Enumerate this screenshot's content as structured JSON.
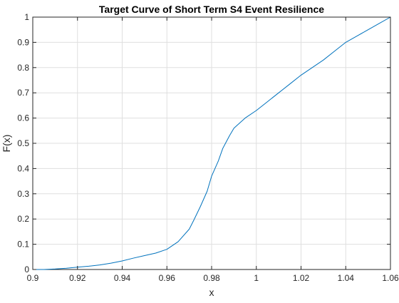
{
  "chart_data": {
    "type": "line",
    "title": "Target Curve of Short Term S4 Event Resilience",
    "xlabel": "x",
    "ylabel": "F(x)",
    "xlim": [
      0.9,
      1.06
    ],
    "ylim": [
      0,
      1
    ],
    "x_ticks": [
      0.9,
      0.92,
      0.94,
      0.96,
      0.98,
      1.0,
      1.02,
      1.04,
      1.06
    ],
    "x_tick_labels": [
      "0.9",
      "0.92",
      "0.94",
      "0.96",
      "0.98",
      "1",
      "1.02",
      "1.04",
      "1.06"
    ],
    "y_ticks": [
      0,
      0.1,
      0.2,
      0.3,
      0.4,
      0.5,
      0.6,
      0.7,
      0.8,
      0.9,
      1.0
    ],
    "y_tick_labels": [
      "0",
      "0.1",
      "0.2",
      "0.3",
      "0.4",
      "0.5",
      "0.6",
      "0.7",
      "0.8",
      "0.9",
      "1"
    ],
    "grid": true,
    "series": [
      {
        "color": "#0072bd",
        "x": [
          0.9,
          0.905,
          0.91,
          0.915,
          0.92,
          0.925,
          0.93,
          0.935,
          0.94,
          0.945,
          0.95,
          0.955,
          0.96,
          0.965,
          0.97,
          0.972,
          0.975,
          0.978,
          0.98,
          0.983,
          0.985,
          0.988,
          0.99,
          0.995,
          1.0,
          1.005,
          1.01,
          1.015,
          1.02,
          1.025,
          1.03,
          1.035,
          1.04,
          1.045,
          1.05,
          1.055,
          1.06
        ],
        "y": [
          0.0,
          0.0,
          0.002,
          0.005,
          0.009,
          0.013,
          0.018,
          0.025,
          0.034,
          0.045,
          0.055,
          0.065,
          0.08,
          0.11,
          0.16,
          0.195,
          0.25,
          0.31,
          0.37,
          0.43,
          0.48,
          0.53,
          0.56,
          0.6,
          0.63,
          0.665,
          0.7,
          0.735,
          0.77,
          0.8,
          0.83,
          0.865,
          0.9,
          0.925,
          0.95,
          0.975,
          1.0
        ]
      }
    ]
  }
}
